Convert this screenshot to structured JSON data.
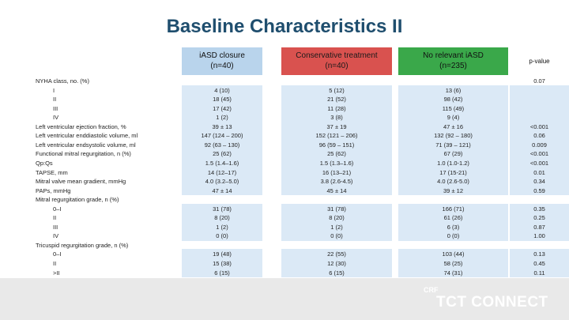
{
  "title": "Baseline Characteristics II",
  "headers": {
    "c1": [
      "iASD closure",
      "(n=40)"
    ],
    "c2": [
      "Conservative treatment",
      "(n=40)"
    ],
    "c3": [
      "No relevant iASD",
      "(n=235)"
    ],
    "c4": "p-value"
  },
  "rows": [
    {
      "label": "NYHA class, no. (%)",
      "c1": "",
      "c2": "",
      "c3": "",
      "p": "0.07"
    },
    {
      "label": "I",
      "indent": true,
      "c1": "4 (10)",
      "c2": "5 (12)",
      "c3": "13 (6)",
      "p": ""
    },
    {
      "label": "II",
      "indent": true,
      "c1": "18 (45)",
      "c2": "21 (52)",
      "c3": "98 (42)",
      "p": ""
    },
    {
      "label": "III",
      "indent": true,
      "c1": "17 (42)",
      "c2": "11 (28)",
      "c3": "115 (49)",
      "p": ""
    },
    {
      "label": "IV",
      "indent": true,
      "c1": "1 (2)",
      "c2": "3 (8)",
      "c3": "9 (4)",
      "p": ""
    },
    {
      "label": "Left ventricular ejection fraction, %",
      "c1": "39 ± 13",
      "c2": "37 ± 19",
      "c3": "47 ± 16",
      "p": "<0.001"
    },
    {
      "label": "Left ventricular enddiastolic volume, ml",
      "c1": "147 (124 – 200)",
      "c2": "152 (121 – 206)",
      "c3": "132 (92 – 180)",
      "p": "0.06"
    },
    {
      "label": "Left ventricular endsystolic volume, ml",
      "c1": "92 (63 – 130)",
      "c2": "96 (59 – 151)",
      "c3": "71 (39 – 121)",
      "p": "0.009"
    },
    {
      "label": "Functional mitral regurgitation, n (%)",
      "c1": "25 (62)",
      "c2": "25 (62)",
      "c3": "67 (29)",
      "p": "<0.001"
    },
    {
      "label": "Qp:Qs",
      "c1": "1.5 (1.4–1.6)",
      "c2": "1.5 (1.3–1.6)",
      "c3": "1.0 (1.0-1.2)",
      "p": "<0.001"
    },
    {
      "label": "TAPSE, mm",
      "c1": "14 (12–17)",
      "c2": "16 (13–21)",
      "c3": "17 (15-21)",
      "p": "0.01"
    },
    {
      "label": "Mitral valve mean gradient, mmHg",
      "c1": "4.0 (3.2–5.0)",
      "c2": "3.8 (2.6-4.5)",
      "c3": "4.0 (2.6-5.0)",
      "p": "0.34"
    },
    {
      "label": "PAPs, mmHg",
      "c1": "47 ± 14",
      "c2": "45 ± 14",
      "c3": "39 ± 12",
      "p": "0.59"
    },
    {
      "label": "Mitral regurgitation grade, n (%)",
      "c1": "",
      "c2": "",
      "c3": "",
      "p": ""
    },
    {
      "label": "0–I",
      "indent": true,
      "c1": "31 (78)",
      "c2": "31 (78)",
      "c3": "166 (71)",
      "p": "0.35"
    },
    {
      "label": "II",
      "indent": true,
      "c1": "8 (20)",
      "c2": "8 (20)",
      "c3": "61 (26)",
      "p": "0.25"
    },
    {
      "label": "III",
      "indent": true,
      "c1": "1 (2)",
      "c2": "1 (2)",
      "c3": "6 (3)",
      "p": "0.87"
    },
    {
      "label": "IV",
      "indent": true,
      "c1": "0 (0)",
      "c2": "0 (0)",
      "c3": "0 (0)",
      "p": "1.00"
    },
    {
      "label": "Tricuspid regurgitation grade, n (%)",
      "c1": "",
      "c2": "",
      "c3": "",
      "p": ""
    },
    {
      "label": "0–I",
      "indent": true,
      "c1": "19 (48)",
      "c2": "22 (55)",
      "c3": "103 (44)",
      "p": "0.13"
    },
    {
      "label": "II",
      "indent": true,
      "c1": "15 (38)",
      "c2": "12 (30)",
      "c3": "58 (25)",
      "p": "0.45"
    },
    {
      "label": ">II",
      "indent": true,
      "c1": "6 (15)",
      "c2": "6 (15)",
      "c3": "74 (31)",
      "p": "0.11"
    }
  ],
  "footer": {
    "brand_small": "CRF",
    "brand": "TCT CONNECT"
  },
  "colors": {
    "title": "#1f4e6e",
    "col1": "#b9d4ec",
    "col2": "#d9524f",
    "col3": "#3aa84a",
    "band": "#dbe9f6"
  }
}
